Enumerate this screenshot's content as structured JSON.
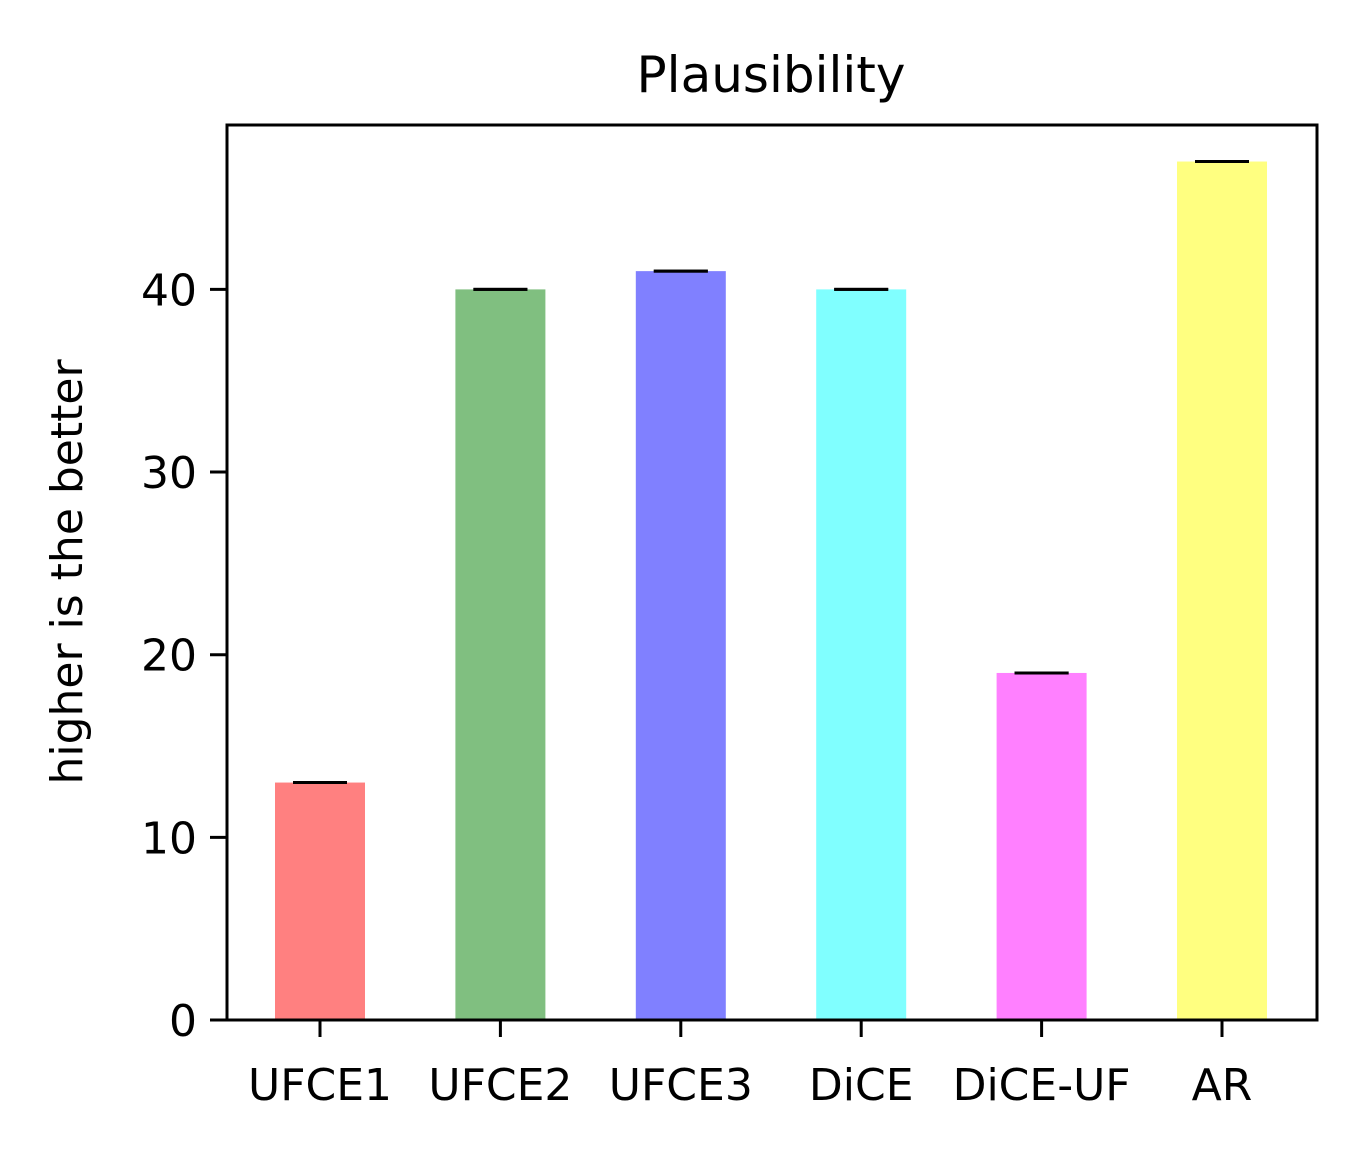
{
  "chart_data": {
    "type": "bar",
    "title": "Plausibility",
    "xlabel": "",
    "ylabel": "higher is the better",
    "categories": [
      "UFCE1",
      "UFCE2",
      "UFCE3",
      "DiCE",
      "DiCE-UF",
      "AR"
    ],
    "values": [
      13,
      40,
      41,
      40,
      19,
      47
    ],
    "errors": [
      0,
      0,
      0,
      0,
      0,
      0
    ],
    "colors": [
      "#ff8080",
      "#80bf80",
      "#8080ff",
      "#80ffff",
      "#ff80ff",
      "#ffff80"
    ],
    "ylim": [
      0,
      49
    ],
    "yticks": [
      0,
      10,
      20,
      30,
      40
    ],
    "grid": false,
    "legend": "none"
  }
}
